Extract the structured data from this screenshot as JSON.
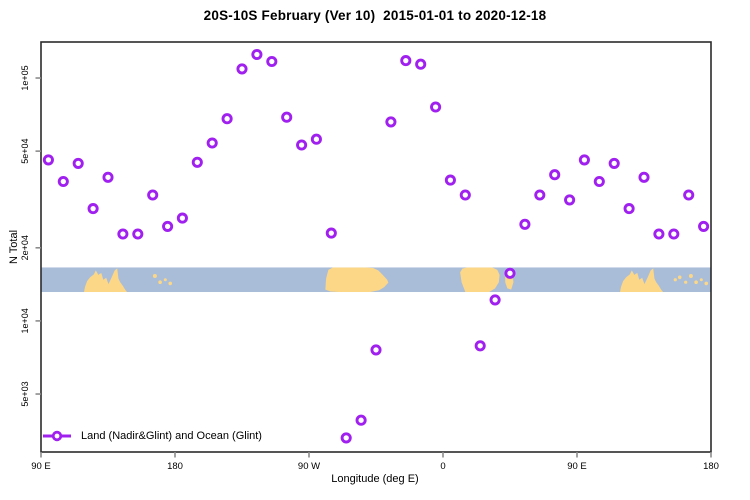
{
  "title": "20S-10S February (Ver 10)  2015-01-01 to 2020-12-18",
  "legend": {
    "label": "Land (Nadir&Glint) and Ocean (Glint)"
  },
  "colors": {
    "point": "#a020f0",
    "ocean": "#a9bdd9",
    "land": "#fcd787",
    "axis_box": "#2b2b2b",
    "tick": "#8c8c8c",
    "text": "#000000"
  },
  "chart_data": {
    "type": "scatter",
    "title": "20S-10S February (Ver 10)  2015-01-01 to 2020-12-18",
    "xlabel": "Longitude (deg E)",
    "ylabel": "N Total",
    "x_scale": "linear",
    "y_scale": "log",
    "xlim": [
      90,
      540
    ],
    "ylim": [
      2886,
      140700
    ],
    "grid": false,
    "x_ticks": {
      "values": [
        90,
        180,
        270,
        360,
        450,
        540
      ],
      "labels": [
        "90 E",
        "180",
        "90 W",
        "0",
        "90 E",
        "180"
      ]
    },
    "y_ticks": {
      "values": [
        5000,
        10000,
        20000,
        50000,
        100000
      ],
      "labels": [
        "5e+03",
        "1e+04",
        "2e+04",
        "5e+04",
        "1e+05"
      ]
    },
    "legend": {
      "label": "Land (Nadir&Glint) and Ocean (Glint)",
      "position": "bottom-left"
    },
    "series": [
      {
        "name": "Land (Nadir&Glint) and Ocean (Glint)",
        "marker": "open-circle",
        "x": [
          95,
          105,
          115,
          125,
          135,
          145,
          155,
          165,
          175,
          185,
          195,
          205,
          215,
          225,
          235,
          245,
          255,
          265,
          275,
          285,
          295,
          305,
          315,
          325,
          335,
          345,
          355,
          365,
          375,
          385,
          395,
          405,
          415,
          425,
          435,
          445,
          455,
          465,
          475,
          485,
          495,
          505,
          515,
          525,
          535
        ],
        "y": [
          46000,
          37500,
          44500,
          29000,
          39000,
          22800,
          22800,
          33000,
          24500,
          26500,
          45000,
          54000,
          68000,
          109000,
          125000,
          117000,
          69000,
          53000,
          56000,
          23000,
          3300,
          3900,
          7600,
          66000,
          118000,
          114000,
          76000,
          38000,
          33000,
          7900,
          12200,
          15700,
          25000,
          33000,
          40000,
          31500,
          46000,
          37500,
          44500,
          29000,
          39000,
          22800,
          22800,
          33000,
          24500
        ]
      }
    ],
    "map_band": {
      "note": "20S-10S latitude strip map drawn across plot",
      "y_top_value": 16600,
      "y_bottom_value": 13150,
      "land_polygons": [
        {
          "name": "australia",
          "points": [
            [
              118.9,
              1
            ],
            [
              119.5,
              0.8
            ],
            [
              121,
              0.55
            ],
            [
              123,
              0.4
            ],
            [
              125.5,
              0.28
            ],
            [
              126.8,
              0.12
            ],
            [
              128.5,
              0.3
            ],
            [
              130.5,
              0.22
            ],
            [
              131.8,
              0.5
            ],
            [
              133.8,
              0.42
            ],
            [
              135.3,
              0.68
            ],
            [
              137.5,
              0.4
            ],
            [
              139.5,
              0.12
            ],
            [
              141.2,
              0.04
            ],
            [
              142,
              0.45
            ],
            [
              143.2,
              0.6
            ],
            [
              145,
              0.75
            ],
            [
              146.5,
              0.9
            ],
            [
              147.8,
              1
            ]
          ]
        },
        {
          "name": "south-america",
          "points": [
            [
              281,
              0.9
            ],
            [
              281.5,
              0.45
            ],
            [
              283,
              0.1
            ],
            [
              286,
              0
            ],
            [
              296,
              0
            ],
            [
              308,
              0
            ],
            [
              313,
              0.02
            ],
            [
              316.5,
              0.12
            ],
            [
              319.5,
              0.3
            ],
            [
              322.5,
              0.5
            ],
            [
              323.3,
              0.62
            ],
            [
              320.5,
              0.8
            ],
            [
              317,
              0.93
            ],
            [
              311,
              1
            ],
            [
              298,
              1
            ],
            [
              290,
              1
            ],
            [
              284.5,
              0.98
            ]
          ]
        },
        {
          "name": "africa",
          "points": [
            [
              371.5,
              0.2
            ],
            [
              373,
              0.05
            ],
            [
              376,
              0
            ],
            [
              386,
              0
            ],
            [
              393,
              0
            ],
            [
              396.5,
              0.1
            ],
            [
              398,
              0.3
            ],
            [
              397.5,
              0.6
            ],
            [
              395,
              0.85
            ],
            [
              391,
              1
            ],
            [
              381,
              1
            ],
            [
              375,
              1
            ],
            [
              372.5,
              0.6
            ]
          ]
        },
        {
          "name": "madagascar",
          "points": [
            [
              401.8,
              0.35
            ],
            [
              403,
              0.12
            ],
            [
              405,
              0.08
            ],
            [
              406.8,
              0.3
            ],
            [
              407.3,
              0.6
            ],
            [
              405.8,
              0.9
            ],
            [
              403.2,
              0.85
            ],
            [
              401.8,
              0.6
            ]
          ]
        },
        {
          "name": "australia-wrap",
          "points": [
            [
              478.9,
              1
            ],
            [
              479.5,
              0.8
            ],
            [
              481,
              0.55
            ],
            [
              483,
              0.4
            ],
            [
              485.5,
              0.28
            ],
            [
              486.8,
              0.12
            ],
            [
              488.5,
              0.3
            ],
            [
              490.5,
              0.22
            ],
            [
              491.8,
              0.5
            ],
            [
              493.8,
              0.42
            ],
            [
              495.3,
              0.68
            ],
            [
              497.5,
              0.4
            ],
            [
              499.5,
              0.12
            ],
            [
              501.2,
              0.04
            ],
            [
              502,
              0.45
            ],
            [
              503.2,
              0.6
            ],
            [
              505,
              0.75
            ],
            [
              506.5,
              0.9
            ],
            [
              507.8,
              1
            ]
          ]
        }
      ],
      "island_dots": [
        {
          "lon": 166.5,
          "frac": 0.35,
          "r": 2.0
        },
        {
          "lon": 170.0,
          "frac": 0.6,
          "r": 1.8
        },
        {
          "lon": 173.5,
          "frac": 0.5,
          "r": 1.5
        },
        {
          "lon": 176.8,
          "frac": 0.65,
          "r": 1.8
        },
        {
          "lon": 516.0,
          "frac": 0.5,
          "r": 1.6
        },
        {
          "lon": 519.0,
          "frac": 0.4,
          "r": 1.8
        },
        {
          "lon": 523.0,
          "frac": 0.6,
          "r": 1.6
        },
        {
          "lon": 526.5,
          "frac": 0.35,
          "r": 2.0
        },
        {
          "lon": 530.0,
          "frac": 0.6,
          "r": 1.8
        },
        {
          "lon": 533.5,
          "frac": 0.5,
          "r": 1.5
        },
        {
          "lon": 536.8,
          "frac": 0.65,
          "r": 1.8
        }
      ]
    }
  }
}
